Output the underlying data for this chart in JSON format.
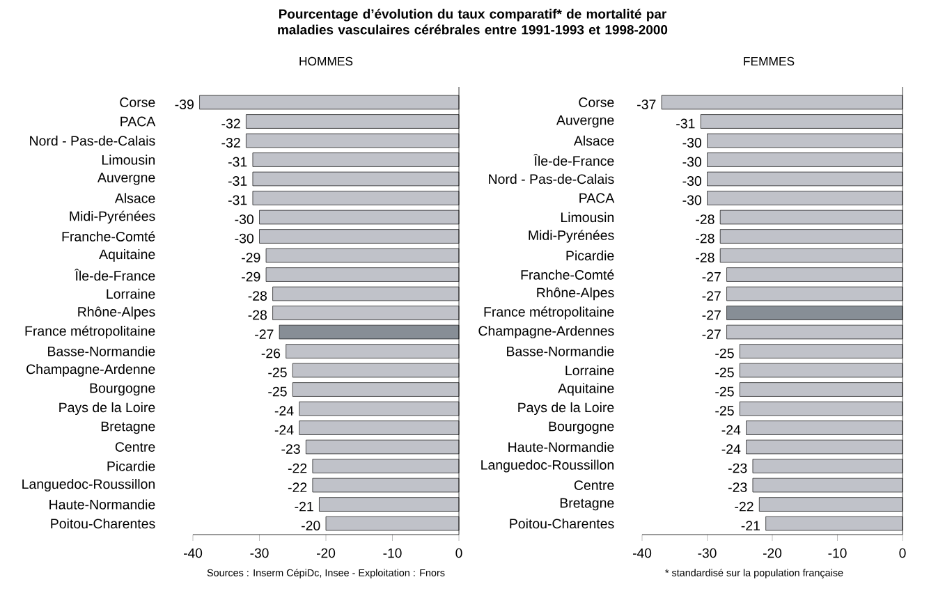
{
  "chart_data": [
    {
      "type": "bar",
      "orientation": "horizontal",
      "title": "Pourcentage d’évolution du taux comparatif* de mortalité par maladies vasculaires cérébrales entre 1991-1993 et 1998-2000",
      "subtitle": "HOMMES",
      "categories": [
        "Corse",
        "PACA",
        "Nord - Pas-de-Calais",
        "Limousin",
        "Auvergne",
        "Alsace",
        "Midi-Pyrénées",
        "Franche-Comté",
        "Aquitaine",
        "Île-de-France",
        "Lorraine",
        "Rhône-Alpes",
        "France métropolitaine",
        "Basse-Normandie",
        "Champagne-Ardenne",
        "Bourgogne",
        "Pays de la Loire",
        "Bretagne",
        "Centre",
        "Picardie",
        "Languedoc-Roussillon",
        "Haute-Normandie",
        "Poitou-Charentes"
      ],
      "values": [
        -39,
        -32,
        -32,
        -31,
        -31,
        -31,
        -30,
        -30,
        -29,
        -29,
        -28,
        -28,
        -27,
        -26,
        -25,
        -25,
        -24,
        -24,
        -23,
        -22,
        -22,
        -21,
        -20
      ],
      "colors": [
        "#c0c2c9",
        "#c0c2c9",
        "#c0c2c9",
        "#c0c2c9",
        "#c0c2c9",
        "#c0c2c9",
        "#c0c2c9",
        "#c0c2c9",
        "#c0c2c9",
        "#c0c2c9",
        "#c0c2c9",
        "#c0c2c9",
        "#878e96",
        "#c0c2c9",
        "#c0c2c9",
        "#c0c2c9",
        "#c0c2c9",
        "#c0c2c9",
        "#c0c2c9",
        "#c0c2c9",
        "#c0c2c9",
        "#c0c2c9",
        "#c0c2c9"
      ],
      "xlim": [
        -40,
        0
      ],
      "xticks": [
        -40,
        -30,
        -20,
        -10,
        0
      ],
      "data_labels": true,
      "annotations": [
        "Sources : Inserm CépiDc, Insee  -  Exploitation : Fnors"
      ]
    },
    {
      "type": "bar",
      "orientation": "horizontal",
      "title": "FEMMES",
      "categories": [
        "Corse",
        "Auvergne",
        "Alsace",
        "Île-de-France",
        "Nord - Pas-de-Calais",
        "PACA",
        "Limousin",
        "Midi-Pyrénées",
        "Picardie",
        "Franche-Comté",
        "Rhône-Alpes",
        "France métropolitaine",
        "Champagne-Ardennes",
        "Basse-Normandie",
        "Lorraine",
        "Aquitaine",
        "Pays de la Loire",
        "Bourgogne",
        "Haute-Normandie",
        "Languedoc-Roussillon",
        "Centre",
        "Bretagne",
        "Poitou-Charentes"
      ],
      "values": [
        -37,
        -31,
        -30,
        -30,
        -30,
        -30,
        -28,
        -28,
        -28,
        -27,
        -27,
        -27,
        -27,
        -25,
        -25,
        -25,
        -25,
        -24,
        -24,
        -23,
        -23,
        -22,
        -21
      ],
      "colors": [
        "#c0c2c9",
        "#c0c2c9",
        "#c0c2c9",
        "#c0c2c9",
        "#c0c2c9",
        "#c0c2c9",
        "#c0c2c9",
        "#c0c2c9",
        "#c0c2c9",
        "#c0c2c9",
        "#c0c2c9",
        "#878e96",
        "#c0c2c9",
        "#c0c2c9",
        "#c0c2c9",
        "#c0c2c9",
        "#c0c2c9",
        "#c0c2c9",
        "#c0c2c9",
        "#c0c2c9",
        "#c0c2c9",
        "#c0c2c9",
        "#c0c2c9"
      ],
      "xlim": [
        -40,
        0
      ],
      "xticks": [
        -40,
        -30,
        -20,
        -10,
        0
      ],
      "data_labels": true,
      "annotations": [
        "* standardisé sur la population française"
      ]
    }
  ]
}
